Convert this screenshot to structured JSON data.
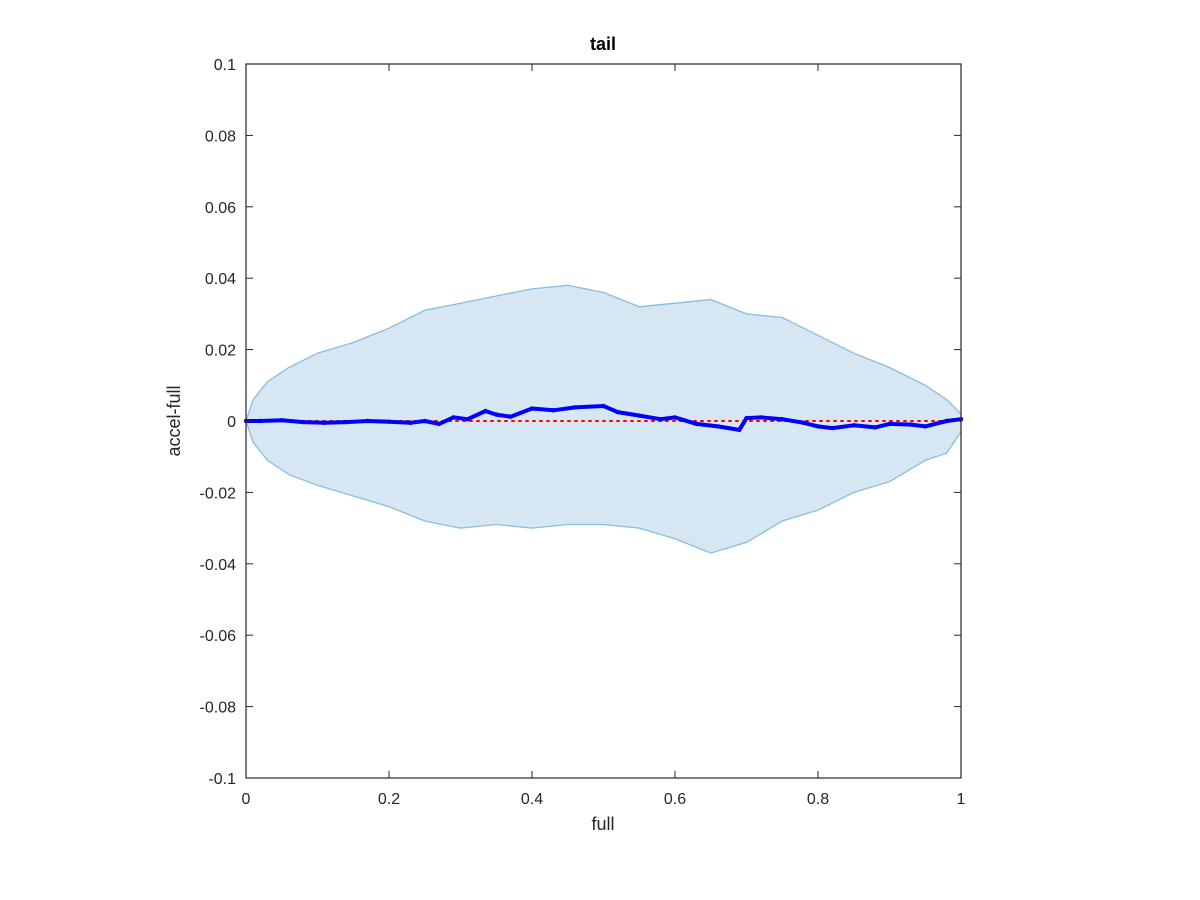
{
  "chart_data": {
    "type": "area",
    "title": "tail",
    "xlabel": "full",
    "ylabel": "accel-full",
    "xlim": [
      0,
      1
    ],
    "ylim": [
      -0.1,
      0.1
    ],
    "x_ticks": [
      0,
      0.2,
      0.4,
      0.6,
      0.8,
      1
    ],
    "x_tick_labels": [
      "0",
      "0.2",
      "0.4",
      "0.6",
      "0.8",
      "1"
    ],
    "y_ticks": [
      0.1,
      0.08,
      0.06,
      0.04,
      0.02,
      0,
      -0.02,
      -0.04,
      -0.06,
      -0.08,
      -0.1
    ],
    "y_tick_labels": [
      "0.1",
      "0.08",
      "0.06",
      "0.04",
      "0.02",
      "0",
      "-0.02",
      "-0.04",
      "-0.06",
      "-0.08",
      "-0.1"
    ],
    "grid": false,
    "band": {
      "fill_color": "#d6e7f3",
      "edge_color": "#88bde0",
      "x": [
        0,
        0.01,
        0.03,
        0.06,
        0.1,
        0.15,
        0.2,
        0.25,
        0.3,
        0.35,
        0.4,
        0.45,
        0.5,
        0.55,
        0.6,
        0.65,
        0.7,
        0.75,
        0.8,
        0.85,
        0.9,
        0.95,
        0.98,
        1.0
      ],
      "upper": [
        0,
        0.006,
        0.011,
        0.015,
        0.019,
        0.022,
        0.026,
        0.031,
        0.033,
        0.035,
        0.037,
        0.038,
        0.036,
        0.032,
        0.033,
        0.034,
        0.03,
        0.029,
        0.024,
        0.019,
        0.015,
        0.01,
        0.006,
        0.002
      ],
      "lower": [
        0,
        -0.006,
        -0.011,
        -0.015,
        -0.018,
        -0.021,
        -0.024,
        -0.028,
        -0.03,
        -0.029,
        -0.03,
        -0.029,
        -0.029,
        -0.03,
        -0.033,
        -0.037,
        -0.034,
        -0.028,
        -0.025,
        -0.02,
        -0.017,
        -0.011,
        -0.009,
        -0.003
      ]
    },
    "series": [
      {
        "color": "#0000ff",
        "x": [
          0,
          0.02,
          0.05,
          0.08,
          0.11,
          0.14,
          0.17,
          0.2,
          0.23,
          0.25,
          0.27,
          0.29,
          0.31,
          0.335,
          0.35,
          0.37,
          0.4,
          0.43,
          0.46,
          0.5,
          0.52,
          0.55,
          0.58,
          0.6,
          0.63,
          0.66,
          0.69,
          0.7,
          0.72,
          0.75,
          0.78,
          0.8,
          0.82,
          0.85,
          0.88,
          0.9,
          0.93,
          0.95,
          0.98,
          1.0
        ],
        "y": [
          0,
          0,
          0.0002,
          -0.0003,
          -0.0005,
          -0.0003,
          0,
          -0.0002,
          -0.0005,
          0,
          -0.0008,
          0.001,
          0.0005,
          0.0028,
          0.0018,
          0.0012,
          0.0035,
          0.003,
          0.0038,
          0.0042,
          0.0025,
          0.0015,
          0.0005,
          0.001,
          -0.0008,
          -0.0015,
          -0.0025,
          0.0008,
          0.001,
          0.0005,
          -0.0005,
          -0.0015,
          -0.002,
          -0.0012,
          -0.0018,
          -0.0008,
          -0.001,
          -0.0015,
          0,
          0.0005
        ]
      }
    ],
    "reference_line": {
      "y": 0,
      "color": "#ff0000",
      "style": "dotted"
    }
  }
}
